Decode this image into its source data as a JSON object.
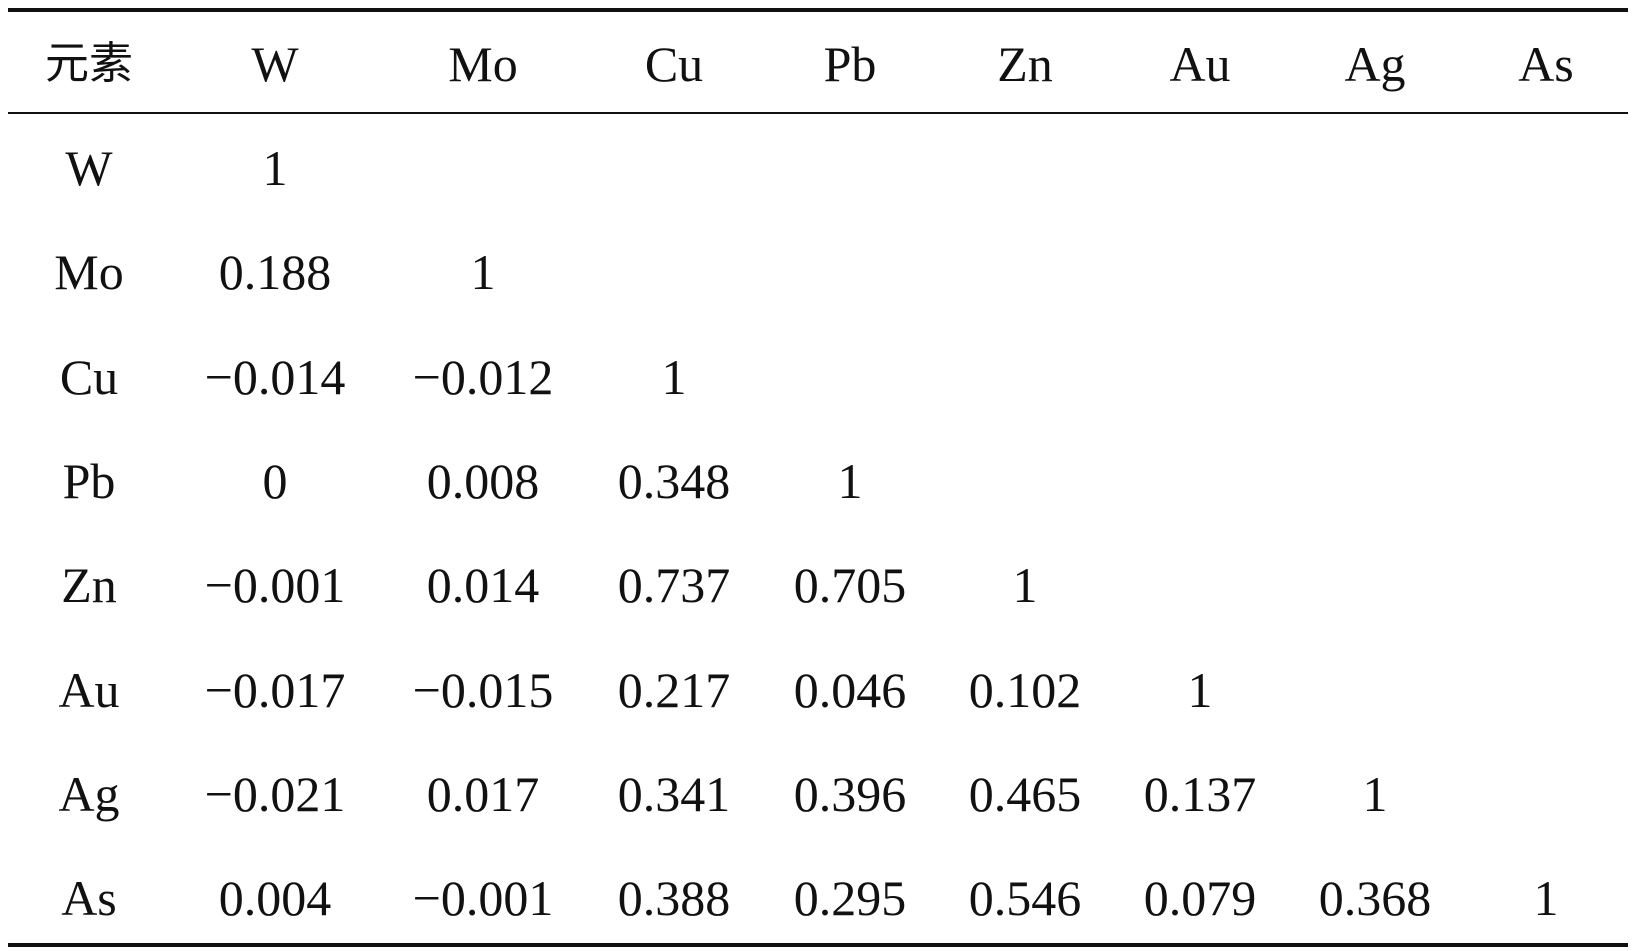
{
  "table": {
    "header": [
      "元素",
      "W",
      "Mo",
      "Cu",
      "Pb",
      "Zn",
      "Au",
      "Ag",
      "As"
    ],
    "rows": [
      [
        "W",
        "1"
      ],
      [
        "Mo",
        "0.188",
        "1"
      ],
      [
        "Cu",
        "−0.014",
        "−0.012",
        "1"
      ],
      [
        "Pb",
        "0",
        "0.008",
        "0.348",
        "1"
      ],
      [
        "Zn",
        "−0.001",
        "0.014",
        "0.737",
        "0.705",
        "1"
      ],
      [
        "Au",
        "−0.017",
        "−0.015",
        "0.217",
        "0.046",
        "0.102",
        "1"
      ],
      [
        "Ag",
        "−0.021",
        "0.017",
        "0.341",
        "0.396",
        "0.465",
        "0.137",
        "1"
      ],
      [
        "As",
        "0.004",
        "−0.001",
        "0.388",
        "0.295",
        "0.546",
        "0.079",
        "0.368",
        "1"
      ]
    ]
  }
}
